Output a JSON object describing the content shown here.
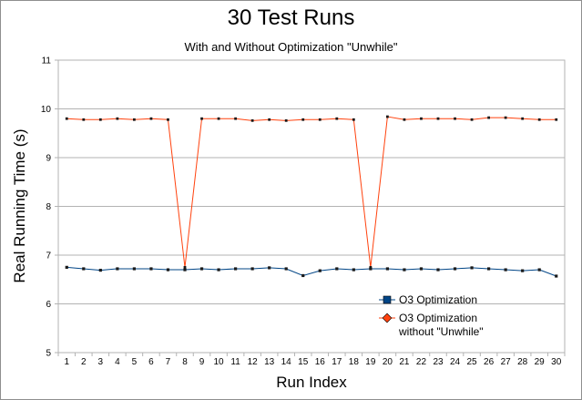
{
  "chart_data": {
    "type": "line",
    "title": "30 Test Runs",
    "subtitle": "With and Without Optimization \"Unwhile\"",
    "xlabel": "Run Index",
    "ylabel": "Real Running Time (s)",
    "ylim": [
      5,
      11
    ],
    "yticks": [
      "5",
      "6",
      "7",
      "8",
      "9",
      "10",
      "11"
    ],
    "x": [
      1,
      2,
      3,
      4,
      5,
      6,
      7,
      8,
      9,
      10,
      11,
      12,
      13,
      14,
      15,
      16,
      17,
      18,
      19,
      20,
      21,
      22,
      23,
      24,
      25,
      26,
      27,
      28,
      29,
      30
    ],
    "grid": "horizontal",
    "legend_position": "bottom-right",
    "series": [
      {
        "name": "O3 Optimization",
        "color": "#004586",
        "marker": "square",
        "values": [
          6.75,
          6.72,
          6.69,
          6.72,
          6.72,
          6.72,
          6.7,
          6.7,
          6.72,
          6.7,
          6.72,
          6.72,
          6.74,
          6.72,
          6.58,
          6.68,
          6.72,
          6.7,
          6.72,
          6.72,
          6.7,
          6.72,
          6.7,
          6.72,
          6.74,
          6.72,
          6.7,
          6.68,
          6.7,
          6.57
        ]
      },
      {
        "name": "O3 Optimization\nwithout \"Unwhile\"",
        "legend_lines": [
          "O3 Optimization",
          "without \"Unwhile\""
        ],
        "color": "#ff420e",
        "marker": "diamond",
        "values": [
          9.8,
          9.78,
          9.78,
          9.8,
          9.78,
          9.8,
          9.78,
          6.75,
          9.8,
          9.8,
          9.8,
          9.76,
          9.78,
          9.76,
          9.78,
          9.78,
          9.8,
          9.78,
          6.75,
          9.84,
          9.78,
          9.8,
          9.8,
          9.8,
          9.78,
          9.82,
          9.82,
          9.8,
          9.78,
          9.78
        ]
      }
    ]
  }
}
